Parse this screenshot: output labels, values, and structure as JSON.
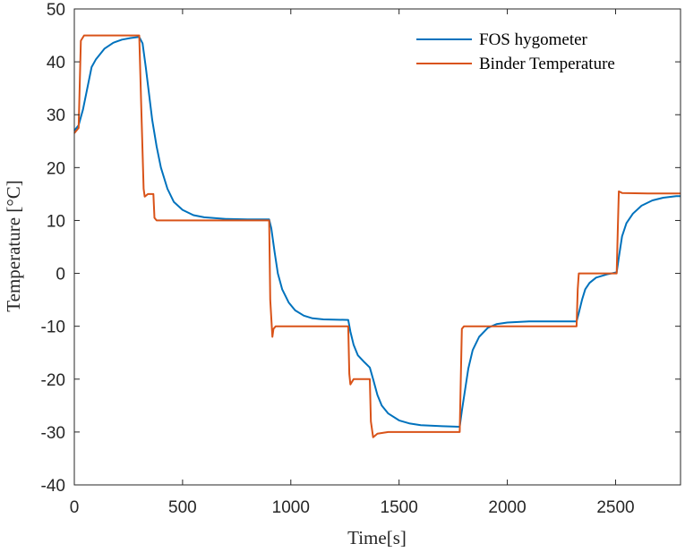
{
  "chart_data": {
    "type": "line",
    "title": "",
    "xlabel": "Time[s]",
    "ylabel": "Temperature [°C]",
    "xlim": [
      0,
      2800
    ],
    "ylim": [
      -40,
      50
    ],
    "xticks": [
      0,
      500,
      1000,
      1500,
      2000,
      2500
    ],
    "yticks": [
      -40,
      -30,
      -20,
      -10,
      0,
      10,
      20,
      30,
      40,
      50
    ],
    "grid": false,
    "legend_position": "top-right",
    "series": [
      {
        "name": "FOS hygometer",
        "color": "#0072BD",
        "points": [
          [
            0,
            27
          ],
          [
            20,
            28
          ],
          [
            40,
            31
          ],
          [
            60,
            35
          ],
          [
            80,
            39
          ],
          [
            100,
            40.5
          ],
          [
            140,
            42.5
          ],
          [
            180,
            43.6
          ],
          [
            220,
            44.2
          ],
          [
            260,
            44.5
          ],
          [
            300,
            44.7
          ],
          [
            315,
            43.5
          ],
          [
            330,
            39
          ],
          [
            345,
            34
          ],
          [
            360,
            29
          ],
          [
            380,
            24
          ],
          [
            400,
            20
          ],
          [
            430,
            16
          ],
          [
            460,
            13.5
          ],
          [
            500,
            12
          ],
          [
            550,
            11
          ],
          [
            600,
            10.6
          ],
          [
            700,
            10.3
          ],
          [
            800,
            10.2
          ],
          [
            900,
            10.2
          ],
          [
            910,
            8.5
          ],
          [
            925,
            4
          ],
          [
            940,
            0
          ],
          [
            960,
            -3
          ],
          [
            990,
            -5.5
          ],
          [
            1020,
            -7
          ],
          [
            1060,
            -8
          ],
          [
            1100,
            -8.5
          ],
          [
            1150,
            -8.7
          ],
          [
            1265,
            -8.8
          ],
          [
            1275,
            -11
          ],
          [
            1290,
            -13.5
          ],
          [
            1310,
            -15.5
          ],
          [
            1340,
            -16.8
          ],
          [
            1365,
            -17.8
          ],
          [
            1380,
            -20
          ],
          [
            1400,
            -23
          ],
          [
            1420,
            -25
          ],
          [
            1450,
            -26.5
          ],
          [
            1500,
            -27.8
          ],
          [
            1550,
            -28.4
          ],
          [
            1600,
            -28.7
          ],
          [
            1700,
            -28.9
          ],
          [
            1780,
            -29
          ],
          [
            1790,
            -26
          ],
          [
            1805,
            -22
          ],
          [
            1820,
            -18
          ],
          [
            1840,
            -14.5
          ],
          [
            1870,
            -12
          ],
          [
            1910,
            -10.3
          ],
          [
            1950,
            -9.6
          ],
          [
            2000,
            -9.3
          ],
          [
            2100,
            -9.1
          ],
          [
            2200,
            -9.1
          ],
          [
            2320,
            -9.1
          ],
          [
            2330,
            -7.5
          ],
          [
            2345,
            -5
          ],
          [
            2360,
            -3
          ],
          [
            2380,
            -1.8
          ],
          [
            2410,
            -0.8
          ],
          [
            2460,
            -0.2
          ],
          [
            2505,
            0.2
          ],
          [
            2515,
            3
          ],
          [
            2530,
            7
          ],
          [
            2550,
            9.5
          ],
          [
            2580,
            11.3
          ],
          [
            2620,
            12.8
          ],
          [
            2670,
            13.8
          ],
          [
            2720,
            14.3
          ],
          [
            2780,
            14.6
          ],
          [
            2800,
            14.6
          ]
        ]
      },
      {
        "name": "Binder Temperature",
        "color": "#D95319",
        "points": [
          [
            0,
            26.5
          ],
          [
            20,
            27.5
          ],
          [
            30,
            44
          ],
          [
            45,
            45
          ],
          [
            100,
            45
          ],
          [
            200,
            45
          ],
          [
            300,
            45
          ],
          [
            310,
            30
          ],
          [
            320,
            16
          ],
          [
            325,
            14.5
          ],
          [
            340,
            15
          ],
          [
            365,
            15
          ],
          [
            370,
            10.5
          ],
          [
            380,
            10
          ],
          [
            500,
            10
          ],
          [
            700,
            10
          ],
          [
            900,
            10
          ],
          [
            905,
            -5
          ],
          [
            915,
            -12
          ],
          [
            920,
            -10.5
          ],
          [
            930,
            -10
          ],
          [
            1100,
            -10
          ],
          [
            1265,
            -10
          ],
          [
            1270,
            -19
          ],
          [
            1275,
            -21
          ],
          [
            1290,
            -20
          ],
          [
            1365,
            -20
          ],
          [
            1370,
            -28
          ],
          [
            1380,
            -31
          ],
          [
            1400,
            -30.3
          ],
          [
            1450,
            -30
          ],
          [
            1600,
            -30
          ],
          [
            1780,
            -30
          ],
          [
            1785,
            -20
          ],
          [
            1790,
            -10.5
          ],
          [
            1800,
            -10
          ],
          [
            2000,
            -10
          ],
          [
            2200,
            -10
          ],
          [
            2320,
            -10
          ],
          [
            2325,
            -3
          ],
          [
            2330,
            0
          ],
          [
            2400,
            0
          ],
          [
            2505,
            0
          ],
          [
            2510,
            8
          ],
          [
            2515,
            15.5
          ],
          [
            2530,
            15.2
          ],
          [
            2650,
            15.1
          ],
          [
            2800,
            15.1
          ]
        ]
      }
    ]
  }
}
